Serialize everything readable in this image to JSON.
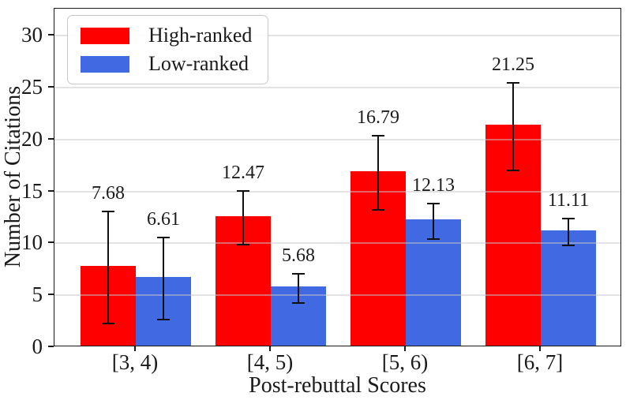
{
  "chart_data": {
    "type": "bar",
    "title": "",
    "xlabel": "Post-rebuttal Scores",
    "ylabel": "Number of Citations",
    "categories": [
      "[3, 4)",
      "[4, 5)",
      "[5, 6)",
      "[6, 7]"
    ],
    "series": [
      {
        "name": "High-ranked",
        "color": "#ff0000",
        "values": [
          7.68,
          12.47,
          16.79,
          21.25
        ],
        "errors": [
          5.4,
          2.6,
          3.6,
          4.2
        ]
      },
      {
        "name": "Low-ranked",
        "color": "#4169e1",
        "values": [
          6.61,
          5.68,
          12.13,
          11.11
        ],
        "errors": [
          3.95,
          1.4,
          1.7,
          1.3
        ]
      }
    ],
    "value_labels": {
      "high_ranked": [
        "7.68",
        "12.47",
        "16.79",
        "21.25"
      ],
      "low_ranked": [
        "6.61",
        "5.68",
        "12.13",
        "11.11"
      ]
    },
    "yticks": [
      0,
      5,
      10,
      15,
      20,
      25,
      30
    ],
    "ylim": [
      0,
      32.6
    ],
    "grid": "horizontal-only, light gray, drawn above bars",
    "legend_position": "upper-left",
    "error_bar_color": "#111111",
    "text_color": "#1a1a1a",
    "background_color": "#ffffff"
  }
}
